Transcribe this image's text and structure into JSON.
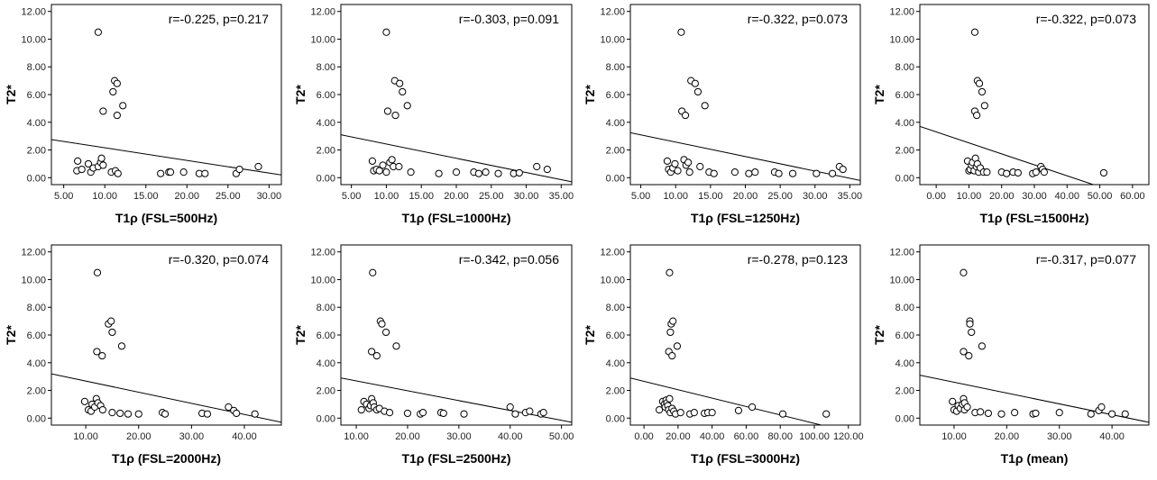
{
  "chart_data": [
    {
      "type": "scatter",
      "title": "",
      "xlabel": "T1ρ (FSL=500Hz)",
      "ylabel": "T2*",
      "annotation": "r=-0.225, p=0.217",
      "xlim": [
        3.5,
        31.5
      ],
      "ylim": [
        -0.5,
        12.5
      ],
      "xticks": [
        "5.00",
        "10.00",
        "15.00",
        "20.00",
        "25.00",
        "30.00"
      ],
      "yticks": [
        "0.00",
        "2.00",
        "4.00",
        "6.00",
        "8.00",
        "10.00",
        "12.00"
      ],
      "points": [
        [
          9.2,
          10.5
        ],
        [
          9.8,
          4.8
        ],
        [
          11,
          6.2
        ],
        [
          11.2,
          7.0
        ],
        [
          11.5,
          6.8
        ],
        [
          12.2,
          5.2
        ],
        [
          11.5,
          4.5
        ],
        [
          6.6,
          0.5
        ],
        [
          6.7,
          1.2
        ],
        [
          7.2,
          0.6
        ],
        [
          8.0,
          1.0
        ],
        [
          8.3,
          0.4
        ],
        [
          8.6,
          0.7
        ],
        [
          9.2,
          0.8
        ],
        [
          9.5,
          1.1
        ],
        [
          9.6,
          1.4
        ],
        [
          9.8,
          0.9
        ],
        [
          10.8,
          0.4
        ],
        [
          11.3,
          0.5
        ],
        [
          11.6,
          0.3
        ],
        [
          16.8,
          0.3
        ],
        [
          17.8,
          0.4
        ],
        [
          18,
          0.4
        ],
        [
          19.6,
          0.4
        ],
        [
          21.5,
          0.3
        ],
        [
          22.2,
          0.3
        ],
        [
          26,
          0.3
        ],
        [
          26.4,
          0.6
        ],
        [
          28.7,
          0.8
        ]
      ],
      "fit": [
        [
          3.5,
          2.75
        ],
        [
          31.5,
          0.2
        ]
      ]
    },
    {
      "type": "scatter",
      "title": "",
      "xlabel": "T1ρ (FSL=1000Hz)",
      "ylabel": "T2*",
      "annotation": "r=-0.303, p=0.091",
      "xlim": [
        3.5,
        36.5
      ],
      "ylim": [
        -0.5,
        12.5
      ],
      "xticks": [
        "5.00",
        "10.00",
        "15.00",
        "20.00",
        "25.00",
        "30.00",
        "35.00"
      ],
      "yticks": [
        "0.00",
        "2.00",
        "4.00",
        "6.00",
        "8.00",
        "10.00",
        "12.00"
      ],
      "points": [
        [
          10,
          10.5
        ],
        [
          10.2,
          4.8
        ],
        [
          11.2,
          7.0
        ],
        [
          11.9,
          6.8
        ],
        [
          12.3,
          6.2
        ],
        [
          13.0,
          5.2
        ],
        [
          11.3,
          4.5
        ],
        [
          8.0,
          1.2
        ],
        [
          8.2,
          0.5
        ],
        [
          8.6,
          0.6
        ],
        [
          9.0,
          0.5
        ],
        [
          9.5,
          0.9
        ],
        [
          10.0,
          0.4
        ],
        [
          10.5,
          1.1
        ],
        [
          10.8,
          1.3
        ],
        [
          11.0,
          0.8
        ],
        [
          11.8,
          0.8
        ],
        [
          13.5,
          0.4
        ],
        [
          17.5,
          0.3
        ],
        [
          20,
          0.4
        ],
        [
          22.5,
          0.4
        ],
        [
          23.2,
          0.3
        ],
        [
          24.2,
          0.4
        ],
        [
          26,
          0.3
        ],
        [
          28.2,
          0.3
        ],
        [
          29.0,
          0.35
        ],
        [
          31.5,
          0.8
        ],
        [
          33,
          0.6
        ]
      ],
      "fit": [
        [
          3.5,
          3.1
        ],
        [
          36.5,
          -0.3
        ]
      ]
    },
    {
      "type": "scatter",
      "title": "",
      "xlabel": "T1ρ (FSL=1250Hz)",
      "ylabel": "T2*",
      "annotation": "r=-0.322, p=0.073",
      "xlim": [
        3.5,
        36.5
      ],
      "ylim": [
        -0.5,
        12.5
      ],
      "xticks": [
        "5.00",
        "10.00",
        "15.00",
        "20.00",
        "25.00",
        "30.00",
        "35.00"
      ],
      "yticks": [
        "0.00",
        "2.00",
        "4.00",
        "6.00",
        "8.00",
        "10.00",
        "12.00"
      ],
      "points": [
        [
          10.8,
          10.5
        ],
        [
          10.9,
          4.8
        ],
        [
          11.4,
          4.5
        ],
        [
          12.2,
          7.0
        ],
        [
          12.8,
          6.8
        ],
        [
          13.2,
          6.2
        ],
        [
          14.2,
          5.2
        ],
        [
          8.8,
          1.2
        ],
        [
          9.0,
          0.6
        ],
        [
          9.3,
          0.4
        ],
        [
          9.6,
          0.7
        ],
        [
          9.9,
          1.0
        ],
        [
          10.3,
          0.5
        ],
        [
          11.2,
          1.3
        ],
        [
          11.5,
          0.9
        ],
        [
          11.8,
          1.1
        ],
        [
          12.0,
          0.4
        ],
        [
          13.5,
          0.8
        ],
        [
          14.8,
          0.4
        ],
        [
          15.5,
          0.3
        ],
        [
          18.5,
          0.4
        ],
        [
          20.5,
          0.3
        ],
        [
          21.4,
          0.4
        ],
        [
          24.2,
          0.4
        ],
        [
          24.8,
          0.3
        ],
        [
          26.8,
          0.3
        ],
        [
          30.2,
          0.3
        ],
        [
          32.5,
          0.3
        ],
        [
          33.5,
          0.8
        ],
        [
          34.0,
          0.6
        ]
      ],
      "fit": [
        [
          3.5,
          3.25
        ],
        [
          36.5,
          -0.2
        ]
      ]
    },
    {
      "type": "scatter",
      "title": "",
      "xlabel": "T1ρ (FSL=1500Hz)",
      "ylabel": "T2*",
      "annotation": "r=-0.322, p=0.073",
      "xlim": [
        -5,
        65
      ],
      "ylim": [
        -0.5,
        12.5
      ],
      "xticks": [
        "0.00",
        "10.00",
        "20.00",
        "30.00",
        "40.00",
        "50.00",
        "60.00"
      ],
      "yticks": [
        "0.00",
        "2.00",
        "4.00",
        "6.00",
        "8.00",
        "10.00",
        "12.00"
      ],
      "points": [
        [
          11.8,
          10.5
        ],
        [
          11.8,
          4.8
        ],
        [
          12.4,
          4.5
        ],
        [
          12.6,
          7.0
        ],
        [
          13.2,
          6.8
        ],
        [
          14.0,
          6.2
        ],
        [
          14.8,
          5.2
        ],
        [
          9.6,
          1.2
        ],
        [
          10.0,
          0.5
        ],
        [
          10.4,
          0.6
        ],
        [
          10.8,
          0.9
        ],
        [
          11.1,
          1.1
        ],
        [
          11.6,
          0.5
        ],
        [
          12.0,
          1.4
        ],
        [
          12.3,
          0.8
        ],
        [
          12.6,
          1.0
        ],
        [
          13.0,
          0.4
        ],
        [
          13.5,
          0.7
        ],
        [
          14.5,
          0.4
        ],
        [
          15.5,
          0.4
        ],
        [
          20.0,
          0.4
        ],
        [
          21.5,
          0.3
        ],
        [
          23.5,
          0.4
        ],
        [
          25.0,
          0.35
        ],
        [
          29.5,
          0.3
        ],
        [
          30.5,
          0.4
        ],
        [
          32.0,
          0.8
        ],
        [
          32.5,
          0.6
        ],
        [
          33.0,
          0.4
        ],
        [
          51.2,
          0.35
        ]
      ],
      "fit": [
        [
          -5,
          3.7
        ],
        [
          48,
          -0.5
        ]
      ]
    },
    {
      "type": "scatter",
      "title": "",
      "xlabel": "T1ρ (FSL=2000Hz)",
      "ylabel": "T2*",
      "annotation": "r=-0.320, p=0.074",
      "xlim": [
        3.5,
        47
      ],
      "ylim": [
        -0.5,
        12.5
      ],
      "xticks": [
        "10.00",
        "20.00",
        "30.00",
        "40.00"
      ],
      "yticks": [
        "0.00",
        "2.00",
        "4.00",
        "6.00",
        "8.00",
        "10.00",
        "12.00"
      ],
      "points": [
        [
          12.2,
          10.5
        ],
        [
          12.1,
          4.8
        ],
        [
          13.1,
          4.5
        ],
        [
          14.3,
          6.8
        ],
        [
          14.8,
          7.0
        ],
        [
          15.0,
          6.2
        ],
        [
          16.8,
          5.2
        ],
        [
          9.8,
          1.2
        ],
        [
          10.5,
          0.6
        ],
        [
          11.0,
          0.5
        ],
        [
          11.2,
          1.0
        ],
        [
          11.7,
          0.8
        ],
        [
          12.0,
          1.4
        ],
        [
          12.3,
          1.1
        ],
        [
          12.8,
          0.9
        ],
        [
          13.2,
          0.6
        ],
        [
          15.0,
          0.4
        ],
        [
          16.5,
          0.35
        ],
        [
          18.0,
          0.3
        ],
        [
          20.0,
          0.3
        ],
        [
          24.5,
          0.4
        ],
        [
          25.0,
          0.3
        ],
        [
          32.0,
          0.35
        ],
        [
          33.0,
          0.3
        ],
        [
          37.0,
          0.8
        ],
        [
          38.0,
          0.55
        ],
        [
          38.5,
          0.35
        ],
        [
          42.0,
          0.3
        ]
      ],
      "fit": [
        [
          3.5,
          3.2
        ],
        [
          47,
          -0.3
        ]
      ]
    },
    {
      "type": "scatter",
      "title": "",
      "xlabel": "T1ρ (FSL=2500Hz)",
      "ylabel": "T2*",
      "annotation": "r=-0.342, p=0.056",
      "xlim": [
        7,
        52
      ],
      "ylim": [
        -0.5,
        12.5
      ],
      "xticks": [
        "10.00",
        "20.00",
        "30.00",
        "40.00",
        "50.00"
      ],
      "yticks": [
        "0.00",
        "2.00",
        "4.00",
        "6.00",
        "8.00",
        "10.00",
        "12.00"
      ],
      "points": [
        [
          13.2,
          10.5
        ],
        [
          13.0,
          4.8
        ],
        [
          14.0,
          4.5
        ],
        [
          14.7,
          7.0
        ],
        [
          15.0,
          6.8
        ],
        [
          15.8,
          6.2
        ],
        [
          17.8,
          5.2
        ],
        [
          11.0,
          0.6
        ],
        [
          11.5,
          1.2
        ],
        [
          12.0,
          1.0
        ],
        [
          12.5,
          0.7
        ],
        [
          12.8,
          0.9
        ],
        [
          13.0,
          1.4
        ],
        [
          13.3,
          1.1
        ],
        [
          13.5,
          0.8
        ],
        [
          14.0,
          0.6
        ],
        [
          14.5,
          0.7
        ],
        [
          15.5,
          0.5
        ],
        [
          16.5,
          0.4
        ],
        [
          20.0,
          0.35
        ],
        [
          22.5,
          0.3
        ],
        [
          23.0,
          0.4
        ],
        [
          26.5,
          0.4
        ],
        [
          27.0,
          0.35
        ],
        [
          31.0,
          0.3
        ],
        [
          40.0,
          0.8
        ],
        [
          41.0,
          0.3
        ],
        [
          43.0,
          0.4
        ],
        [
          43.8,
          0.5
        ],
        [
          46.0,
          0.3
        ],
        [
          46.5,
          0.4
        ]
      ],
      "fit": [
        [
          7,
          2.9
        ],
        [
          52,
          -0.3
        ]
      ]
    },
    {
      "type": "scatter",
      "title": "",
      "xlabel": "T1ρ (FSL=3000Hz)",
      "ylabel": "T2*",
      "annotation": "r=-0.278, p=0.123",
      "xlim": [
        -8,
        127
      ],
      "ylim": [
        -0.5,
        12.5
      ],
      "xticks": [
        "0.00",
        "20.00",
        "40.00",
        "60.00",
        "80.00",
        "100.00",
        "120.00"
      ],
      "yticks": [
        "0.00",
        "2.00",
        "4.00",
        "6.00",
        "8.00",
        "10.00",
        "12.00"
      ],
      "points": [
        [
          15.0,
          10.5
        ],
        [
          14.6,
          4.8
        ],
        [
          16.5,
          4.5
        ],
        [
          15.5,
          6.2
        ],
        [
          16.0,
          6.8
        ],
        [
          17.0,
          7.0
        ],
        [
          19.5,
          5.2
        ],
        [
          9.0,
          0.6
        ],
        [
          11.0,
          1.2
        ],
        [
          12.0,
          1.0
        ],
        [
          12.5,
          0.8
        ],
        [
          13.0,
          1.3
        ],
        [
          13.5,
          1.1
        ],
        [
          14.0,
          0.9
        ],
        [
          14.5,
          0.6
        ],
        [
          15.0,
          1.4
        ],
        [
          15.5,
          0.4
        ],
        [
          16.5,
          0.7
        ],
        [
          17.5,
          0.5
        ],
        [
          18.5,
          0.3
        ],
        [
          21.5,
          0.4
        ],
        [
          27.0,
          0.3
        ],
        [
          29.5,
          0.4
        ],
        [
          35.5,
          0.35
        ],
        [
          37.5,
          0.4
        ],
        [
          40.0,
          0.4
        ],
        [
          55.5,
          0.55
        ],
        [
          63.5,
          0.8
        ],
        [
          81.5,
          0.3
        ],
        [
          107.0,
          0.3
        ]
      ],
      "fit": [
        [
          -8,
          2.9
        ],
        [
          104,
          -0.5
        ]
      ]
    },
    {
      "type": "scatter",
      "title": "",
      "xlabel": "T1ρ (mean)",
      "ylabel": "T2*",
      "annotation": "r=-0.317, p=0.077",
      "xlim": [
        3.5,
        47
      ],
      "ylim": [
        -0.5,
        12.5
      ],
      "xticks": [
        "10.00",
        "20.00",
        "30.00",
        "40.00"
      ],
      "yticks": [
        "0.00",
        "2.00",
        "4.00",
        "6.00",
        "8.00",
        "10.00",
        "12.00"
      ],
      "points": [
        [
          11.8,
          10.5
        ],
        [
          11.8,
          4.8
        ],
        [
          12.8,
          4.5
        ],
        [
          13.0,
          7.0
        ],
        [
          13.0,
          6.8
        ],
        [
          13.3,
          6.2
        ],
        [
          15.3,
          5.2
        ],
        [
          9.7,
          1.2
        ],
        [
          10.0,
          0.6
        ],
        [
          10.5,
          0.5
        ],
        [
          10.8,
          0.9
        ],
        [
          11.2,
          0.7
        ],
        [
          11.6,
          1.0
        ],
        [
          11.8,
          1.4
        ],
        [
          12.0,
          1.1
        ],
        [
          12.0,
          0.6
        ],
        [
          12.5,
          0.8
        ],
        [
          14.0,
          0.4
        ],
        [
          15.0,
          0.45
        ],
        [
          16.5,
          0.35
        ],
        [
          19.0,
          0.3
        ],
        [
          21.5,
          0.4
        ],
        [
          25.0,
          0.3
        ],
        [
          25.5,
          0.35
        ],
        [
          30.0,
          0.4
        ],
        [
          36.0,
          0.3
        ],
        [
          37.5,
          0.55
        ],
        [
          38.0,
          0.8
        ],
        [
          40.0,
          0.3
        ],
        [
          42.5,
          0.3
        ]
      ],
      "fit": [
        [
          3.5,
          3.1
        ],
        [
          47,
          -0.3
        ]
      ]
    }
  ]
}
